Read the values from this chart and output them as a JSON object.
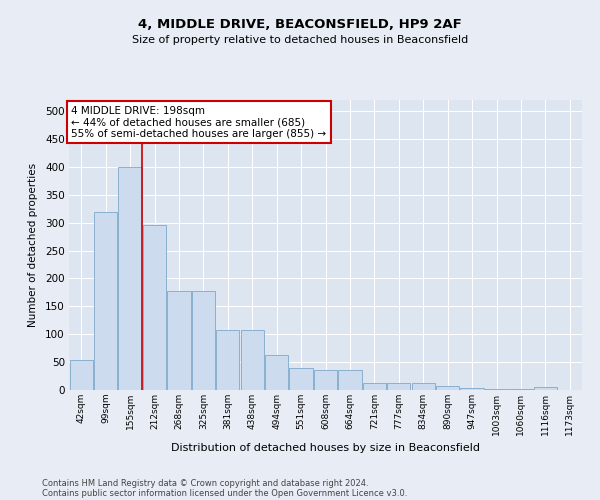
{
  "title1": "4, MIDDLE DRIVE, BEACONSFIELD, HP9 2AF",
  "title2": "Size of property relative to detached houses in Beaconsfield",
  "xlabel": "Distribution of detached houses by size in Beaconsfield",
  "ylabel": "Number of detached properties",
  "categories": [
    "42sqm",
    "99sqm",
    "155sqm",
    "212sqm",
    "268sqm",
    "325sqm",
    "381sqm",
    "438sqm",
    "494sqm",
    "551sqm",
    "608sqm",
    "664sqm",
    "721sqm",
    "777sqm",
    "834sqm",
    "890sqm",
    "947sqm",
    "1003sqm",
    "1060sqm",
    "1116sqm",
    "1173sqm"
  ],
  "values": [
    53,
    320,
    400,
    295,
    178,
    178,
    107,
    107,
    63,
    40,
    36,
    36,
    12,
    12,
    13,
    7,
    3,
    2,
    2,
    5,
    0
  ],
  "bar_color": "#ccdcee",
  "bar_edge_color": "#8ab0d0",
  "vline_color": "#cc0000",
  "annotation_text": "4 MIDDLE DRIVE: 198sqm\n← 44% of detached houses are smaller (685)\n55% of semi-detached houses are larger (855) →",
  "annotation_box_edgecolor": "#cc0000",
  "annotation_fontsize": 7.5,
  "ylim_max": 520,
  "yticks": [
    0,
    50,
    100,
    150,
    200,
    250,
    300,
    350,
    400,
    450,
    500
  ],
  "footer1": "Contains HM Land Registry data © Crown copyright and database right 2024.",
  "footer2": "Contains public sector information licensed under the Open Government Licence v3.0.",
  "fig_bg_color": "#e8edf5",
  "plot_bg_color": "#dce5f0",
  "grid_color": "#ffffff",
  "title1_fontsize": 9.5,
  "title2_fontsize": 8,
  "ylabel_fontsize": 7.5,
  "xlabel_fontsize": 8,
  "xtick_fontsize": 6.5,
  "ytick_fontsize": 7.5,
  "footer_fontsize": 6
}
